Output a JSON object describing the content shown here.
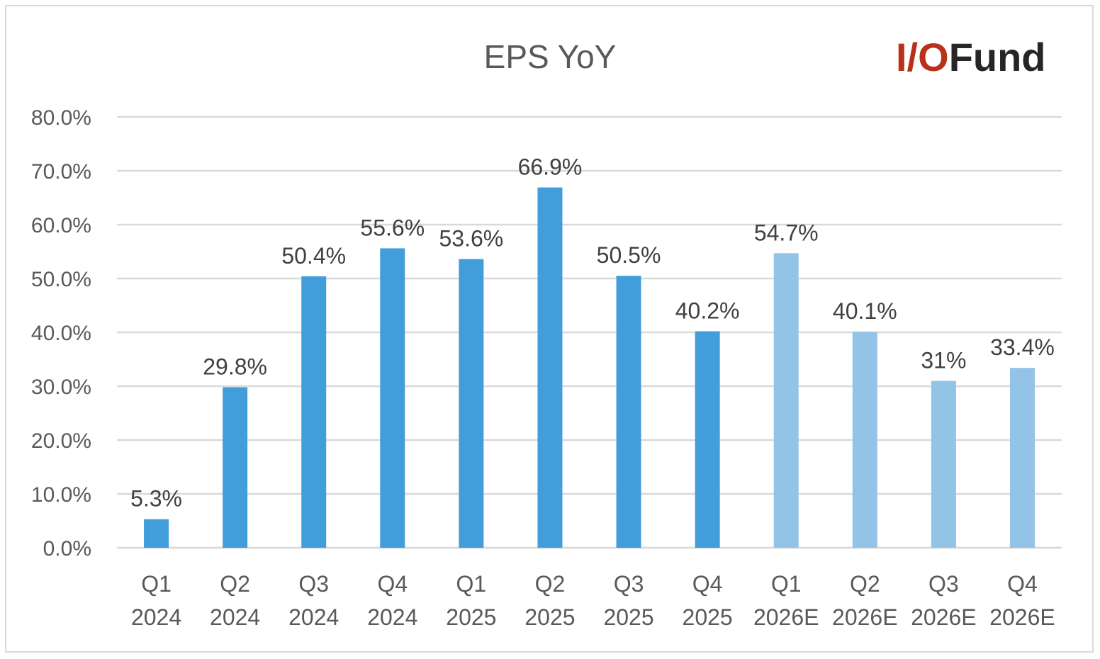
{
  "logo": {
    "part1": "I/O",
    "part2": "Fund"
  },
  "chart_data": {
    "type": "bar",
    "title": "EPS YoY",
    "xlabel": "",
    "ylabel": "",
    "ylim": [
      0,
      80
    ],
    "yticks": [
      0,
      10,
      20,
      30,
      40,
      50,
      60,
      70,
      80
    ],
    "ytick_labels": [
      "0.0%",
      "10.0%",
      "20.0%",
      "30.0%",
      "40.0%",
      "50.0%",
      "60.0%",
      "70.0%",
      "80.0%"
    ],
    "grid": true,
    "legend": "none",
    "categories": [
      [
        "Q1",
        "2024"
      ],
      [
        "Q2",
        "2024"
      ],
      [
        "Q3",
        "2024"
      ],
      [
        "Q4",
        "2024"
      ],
      [
        "Q1",
        "2025"
      ],
      [
        "Q2",
        "2025"
      ],
      [
        "Q3",
        "2025"
      ],
      [
        "Q4",
        "2025"
      ],
      [
        "Q1",
        "2026E"
      ],
      [
        "Q2",
        "2026E"
      ],
      [
        "Q3",
        "2026E"
      ],
      [
        "Q4",
        "2026E"
      ]
    ],
    "values": [
      5.3,
      29.8,
      50.4,
      55.6,
      53.6,
      66.9,
      50.5,
      40.2,
      54.7,
      40.1,
      31,
      33.4
    ],
    "labels": [
      "5.3%",
      "29.8%",
      "50.4%",
      "55.6%",
      "53.6%",
      "66.9%",
      "50.5%",
      "40.2%",
      "54.7%",
      "40.1%",
      "31%",
      "33.4%"
    ],
    "estimate": [
      false,
      false,
      false,
      false,
      false,
      false,
      false,
      false,
      true,
      true,
      true,
      true
    ],
    "colors": {
      "actual": "#419edb",
      "estimate": "#93c4e8",
      "grid": "#d9d9d9",
      "text": "#595959"
    }
  }
}
